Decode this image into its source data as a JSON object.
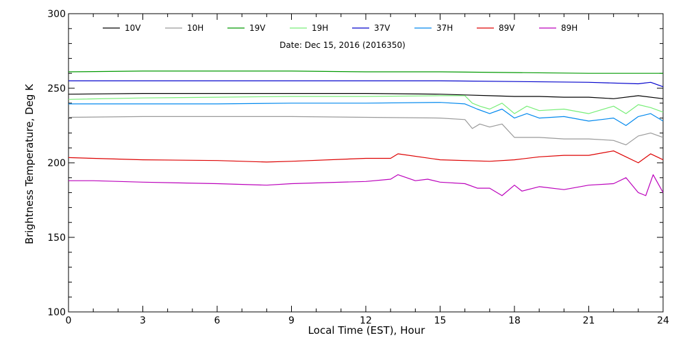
{
  "chart_data": {
    "type": "line",
    "title": "",
    "annotation": "Date: Dec 15, 2016 (2016350)",
    "xlabel": "Local Time (EST), Hour",
    "ylabel": "Brightness Temperature, Deg K",
    "xlim": [
      0,
      24
    ],
    "ylim": [
      100,
      300
    ],
    "xticks": [
      0,
      3,
      6,
      9,
      12,
      15,
      18,
      21,
      24
    ],
    "yticks": [
      100,
      150,
      200,
      250,
      300
    ],
    "grid": false,
    "legend_position": "top",
    "series": [
      {
        "name": "10V",
        "color": "#000000",
        "x": [
          0,
          3,
          6,
          9,
          12,
          15,
          16,
          17,
          18,
          19,
          20,
          21,
          22,
          23,
          24
        ],
        "y": [
          246,
          246.5,
          246.5,
          246.5,
          246.5,
          246,
          245.5,
          245,
          244.5,
          244.5,
          244,
          244,
          243,
          245,
          243
        ]
      },
      {
        "name": "10H",
        "color": "#999999",
        "x": [
          0,
          3,
          6,
          9,
          12,
          15,
          16,
          16.3,
          16.6,
          17,
          17.5,
          18,
          19,
          20,
          21,
          22,
          22.5,
          23,
          23.5,
          24
        ],
        "y": [
          230.5,
          231,
          231,
          231,
          230.5,
          230,
          229,
          223,
          226,
          224,
          226,
          217,
          217,
          216,
          216,
          215,
          212,
          218,
          220,
          217
        ]
      },
      {
        "name": "19V",
        "color": "#009900",
        "x": [
          0,
          3,
          6,
          9,
          12,
          15,
          18,
          21,
          24
        ],
        "y": [
          261,
          261.5,
          261.5,
          261.5,
          261,
          261,
          260.5,
          260,
          260
        ]
      },
      {
        "name": "19H",
        "color": "#77ee77",
        "x": [
          0,
          3,
          6,
          9,
          12,
          15,
          16,
          16.3,
          16.6,
          17,
          17.5,
          18,
          18.5,
          19,
          20,
          21,
          22,
          22.5,
          23,
          23.5,
          24
        ],
        "y": [
          242.5,
          243.5,
          244,
          244.5,
          244.5,
          245,
          245,
          240,
          238,
          236,
          240,
          233,
          238,
          235,
          236,
          233,
          238,
          233,
          239,
          237,
          234
        ]
      },
      {
        "name": "37V",
        "color": "#0000cc",
        "x": [
          0,
          3,
          6,
          9,
          12,
          15,
          18,
          21,
          23,
          23.5,
          24
        ],
        "y": [
          255,
          255,
          255,
          255,
          255,
          255,
          254.5,
          254,
          253,
          254,
          251
        ]
      },
      {
        "name": "37H",
        "color": "#0088ee",
        "x": [
          0,
          3,
          6,
          9,
          12,
          15,
          16,
          16.5,
          17,
          17.5,
          18,
          18.5,
          19,
          20,
          21,
          22,
          22.5,
          23,
          23.5,
          24
        ],
        "y": [
          239.5,
          239.5,
          239.5,
          240,
          240,
          240.5,
          239.5,
          236,
          233,
          236,
          230,
          233,
          230,
          231,
          228,
          230,
          225,
          231,
          233,
          228
        ]
      },
      {
        "name": "89V",
        "color": "#dd0000",
        "x": [
          0,
          1,
          3,
          6,
          8,
          9,
          12,
          13,
          13.3,
          15,
          17,
          18,
          19,
          20,
          21,
          22,
          22.5,
          23,
          23.5,
          24
        ],
        "y": [
          203.5,
          203,
          202,
          201.5,
          200.5,
          201,
          203,
          203,
          206,
          202,
          201,
          202,
          204,
          205,
          205,
          208,
          204,
          200,
          206,
          202
        ]
      },
      {
        "name": "89H",
        "color": "#bb00bb",
        "x": [
          0,
          1,
          3,
          6,
          8,
          9,
          12,
          13,
          13.3,
          14,
          14.5,
          15,
          16,
          16.5,
          17,
          17.5,
          18,
          18.3,
          19,
          20,
          21,
          22,
          22.5,
          23,
          23.3,
          23.6,
          24
        ],
        "y": [
          188,
          188,
          187,
          186,
          185,
          186,
          187.5,
          189,
          192,
          188,
          189,
          187,
          186,
          183,
          183,
          178,
          185,
          181,
          184,
          182,
          185,
          186,
          190,
          180,
          178,
          192,
          180
        ]
      }
    ]
  }
}
